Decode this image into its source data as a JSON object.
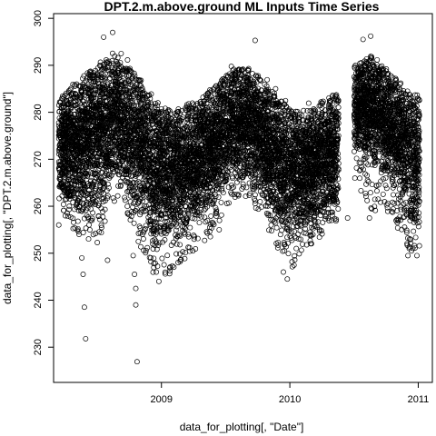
{
  "chart_data": {
    "type": "scatter",
    "title": "DPT.2.m.above.ground ML Inputs Time Series",
    "xlabel": "data_for_plotting[, \"Date\"]",
    "ylabel": "data_for_plotting[, \"DPT.2.m.above.ground\"]",
    "x_ticks": [
      {
        "value": 2009.0,
        "label": "2009"
      },
      {
        "value": 2010.0,
        "label": "2010"
      },
      {
        "value": 2011.0,
        "label": "2011"
      }
    ],
    "y_ticks": [
      230,
      240,
      250,
      260,
      270,
      280,
      290,
      300
    ],
    "xlim": [
      2008.16,
      2011.11
    ],
    "ylim": [
      222.5,
      301
    ],
    "grid": false,
    "legend": "none",
    "marker": "open-circle",
    "color": "#000000",
    "data_range": {
      "start": 2008.2,
      "end": 2011.01
    },
    "data_gap": [
      2010.38,
      2010.5
    ],
    "seasonal_envelope": {
      "x": [
        2008.2,
        2008.35,
        2008.5,
        2008.65,
        2008.8,
        2008.95,
        2009.1,
        2009.25,
        2009.4,
        2009.55,
        2009.7,
        2009.85,
        2010.0,
        2010.1,
        2010.2,
        2010.3,
        2010.38,
        2010.5,
        2010.65,
        2010.8,
        2010.9,
        2011.01
      ],
      "upper": [
        285,
        290,
        294,
        295,
        292,
        286,
        283,
        285,
        288,
        292,
        292,
        288,
        284,
        283,
        284,
        286,
        287,
        292,
        295,
        291,
        288,
        287
      ],
      "lower": [
        262,
        256,
        258,
        265,
        258,
        250,
        252,
        254,
        257,
        265,
        263,
        257,
        250,
        253,
        255,
        258,
        258,
        270,
        268,
        262,
        255,
        253
      ],
      "extreme_lower": [
        259,
        254,
        252,
        262,
        253,
        244,
        246,
        250,
        254,
        262,
        261,
        254,
        246,
        250,
        252,
        256,
        256,
        262,
        258,
        258,
        250,
        250
      ]
    },
    "outliers": [
      {
        "x": 2008.38,
        "y": 249
      },
      {
        "x": 2008.39,
        "y": 245.5
      },
      {
        "x": 2008.4,
        "y": 238.5
      },
      {
        "x": 2008.41,
        "y": 231.8
      },
      {
        "x": 2008.58,
        "y": 248.5
      },
      {
        "x": 2008.81,
        "y": 226.9
      },
      {
        "x": 2008.8,
        "y": 239
      },
      {
        "x": 2008.8,
        "y": 242.5
      },
      {
        "x": 2008.79,
        "y": 245.5
      },
      {
        "x": 2008.78,
        "y": 249.5
      },
      {
        "x": 2008.82,
        "y": 252.5
      },
      {
        "x": 2008.96,
        "y": 246
      },
      {
        "x": 2008.98,
        "y": 244
      },
      {
        "x": 2009.45,
        "y": 255
      },
      {
        "x": 2009.95,
        "y": 246
      },
      {
        "x": 2009.98,
        "y": 244.5
      },
      {
        "x": 2010.45,
        "y": 257.5
      },
      {
        "x": 2010.62,
        "y": 257.5
      },
      {
        "x": 2010.92,
        "y": 249.5
      },
      {
        "x": 2010.93,
        "y": 251
      },
      {
        "x": 2010.99,
        "y": 249.5
      },
      {
        "x": 2008.2,
        "y": 256
      },
      {
        "x": 2008.55,
        "y": 296
      },
      {
        "x": 2008.62,
        "y": 297
      },
      {
        "x": 2009.73,
        "y": 295.3
      },
      {
        "x": 2010.63,
        "y": 296.2
      },
      {
        "x": 2010.57,
        "y": 295.5
      }
    ]
  }
}
